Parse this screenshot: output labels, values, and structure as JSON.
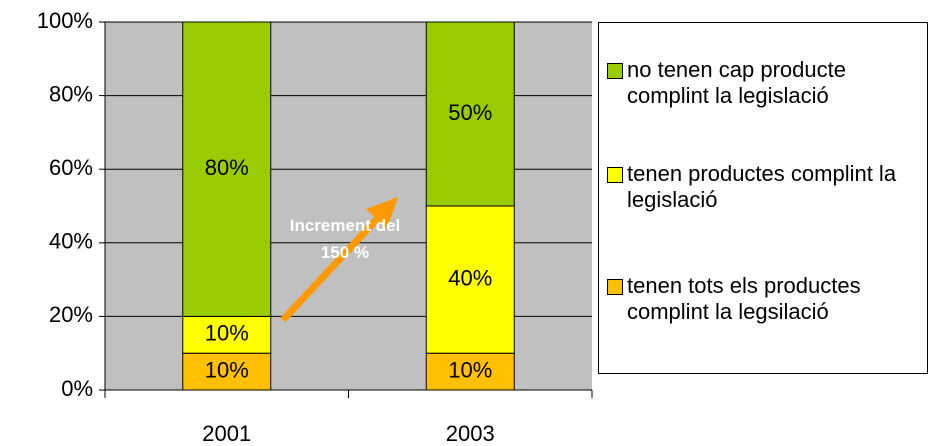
{
  "chart_data": {
    "type": "stacked_bar",
    "categories": [
      "2001",
      "2003"
    ],
    "series": [
      {
        "name": "tenen tots els productes complint la legsilació",
        "color": "#ffc000",
        "values": [
          10,
          10
        ],
        "value_labels": [
          "10%",
          "10%"
        ]
      },
      {
        "name": "tenen productes complint la legislació",
        "color": "#ffff00",
        "values": [
          10,
          40
        ],
        "value_labels": [
          "10%",
          "40%"
        ]
      },
      {
        "name": "no tenen cap producte complint la legislació",
        "color": "#99cc00",
        "values": [
          80,
          50
        ],
        "value_labels": [
          "80%",
          "50%"
        ]
      }
    ],
    "annotation": "Increment del 150 %",
    "ylim": [
      0,
      100
    ],
    "yticks": [
      {
        "value": 0,
        "label": "0%"
      },
      {
        "value": 20,
        "label": "20%"
      },
      {
        "value": 40,
        "label": "40%"
      },
      {
        "value": 60,
        "label": "60%"
      },
      {
        "value": 80,
        "label": "80%"
      },
      {
        "value": 100,
        "label": "100%"
      }
    ],
    "grid": true,
    "legend": "right"
  }
}
